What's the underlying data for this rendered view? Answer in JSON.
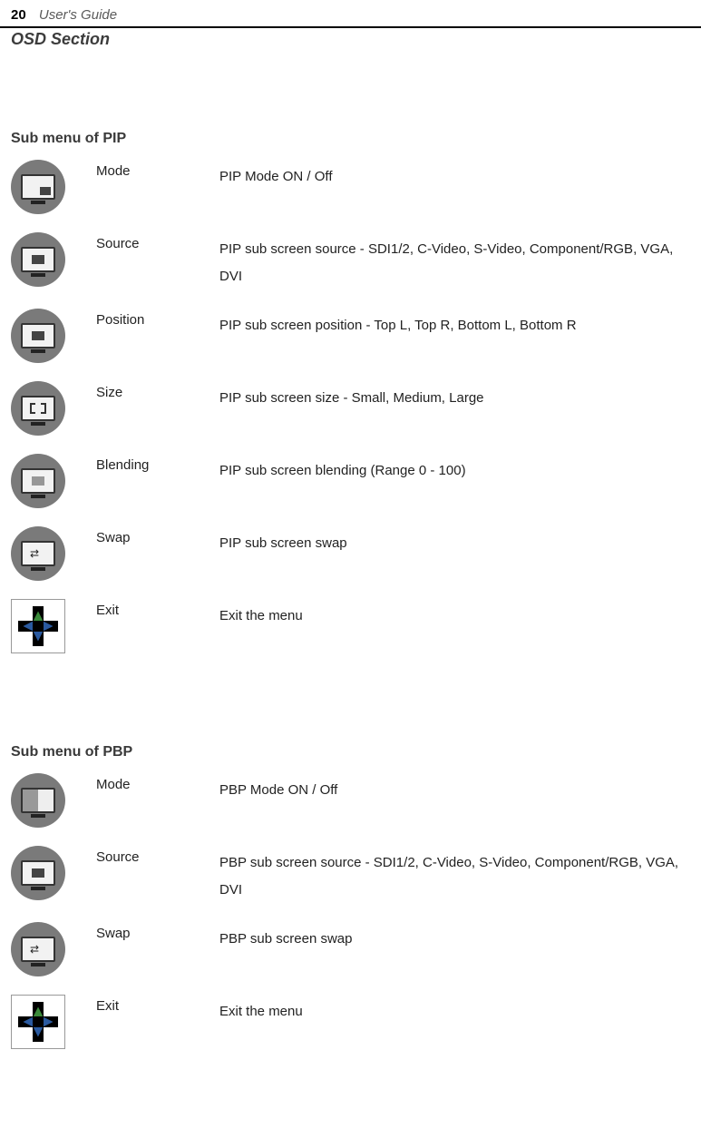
{
  "header": {
    "page_number": "20",
    "guide_title": "User's Guide"
  },
  "section_title": "OSD Section",
  "sections": [
    {
      "heading": "Sub menu of PIP",
      "items": [
        {
          "icon": "pip-mode",
          "label": "Mode",
          "desc": "PIP Mode ON / Off"
        },
        {
          "icon": "pip-source",
          "label": "Source",
          "desc": "PIP sub screen source - SDI1/2, C-Video, S-Video, Component/RGB, VGA, DVI"
        },
        {
          "icon": "pip-position",
          "label": "Position",
          "desc": "PIP sub screen position - Top L, Top R, Bottom L, Bottom R"
        },
        {
          "icon": "pip-size",
          "label": "Size",
          "desc": "PIP sub screen size - Small, Medium, Large"
        },
        {
          "icon": "pip-blending",
          "label": "Blending",
          "desc": "PIP sub screen blending (Range 0 - 100)"
        },
        {
          "icon": "pip-swap",
          "label": "Swap",
          "desc": "PIP sub screen swap"
        },
        {
          "icon": "exit",
          "label": "Exit",
          "desc": "Exit the menu"
        }
      ]
    },
    {
      "heading": "Sub menu of PBP",
      "items": [
        {
          "icon": "pbp-mode",
          "label": "Mode",
          "desc": "PBP Mode ON / Off"
        },
        {
          "icon": "pbp-source",
          "label": "Source",
          "desc": "PBP sub screen source - SDI1/2, C-Video, S-Video, Component/RGB, VGA, DVI"
        },
        {
          "icon": "pbp-swap",
          "label": "Swap",
          "desc": "PBP sub screen swap"
        },
        {
          "icon": "exit",
          "label": "Exit",
          "desc": "Exit the menu"
        }
      ]
    }
  ]
}
